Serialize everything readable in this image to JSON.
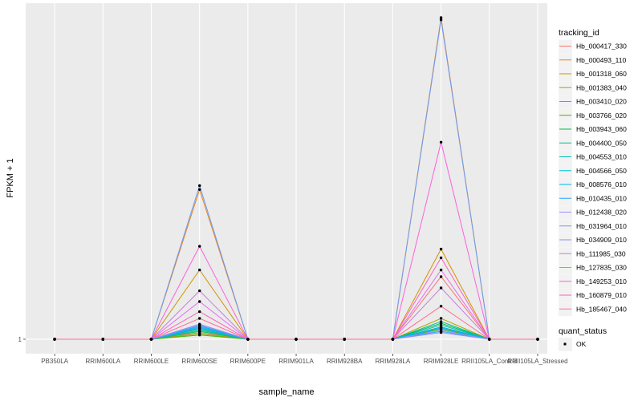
{
  "chart_data": {
    "type": "line",
    "xlabel": "sample_name",
    "ylabel": "FPKM + 1",
    "y_scale": "log",
    "y_ticks": [
      {
        "value": 1,
        "label": "1"
      }
    ],
    "grid": true,
    "categories": [
      "PB350LA",
      "RRIM600LA",
      "RRIM600LE",
      "RRIM600SE",
      "RRIM600PE",
      "RRIM901LA",
      "RRIM928BA",
      "RRIM928LA",
      "RRIM928LE",
      "RRII105LA_Control",
      "RRII105LA_Stressed"
    ],
    "legend": {
      "placement": "right",
      "title": "tracking_id"
    },
    "series": [
      {
        "name": "Hb_000417_330",
        "color": "#F8766D",
        "values": [
          1,
          1,
          1,
          1.25,
          1,
          1,
          1,
          1,
          8,
          1,
          1
        ]
      },
      {
        "name": "Hb_000493_110",
        "color": "#E7851E",
        "values": [
          1,
          1,
          1,
          145,
          1,
          1,
          1,
          1,
          44000,
          1,
          1
        ]
      },
      {
        "name": "Hb_001318_060",
        "color": "#D09400",
        "values": [
          1,
          1,
          1,
          10,
          1,
          1,
          1,
          1,
          20,
          1,
          1
        ]
      },
      {
        "name": "Hb_001383_040",
        "color": "#B2A100",
        "values": [
          1,
          1,
          1,
          1.45,
          1,
          1,
          1,
          1,
          2,
          1,
          1
        ]
      },
      {
        "name": "Hb_003410_020",
        "color": "#89AC00",
        "values": [
          1,
          1,
          1,
          1.2,
          1,
          1,
          1,
          1,
          1.5,
          1,
          1
        ]
      },
      {
        "name": "Hb_003766_020",
        "color": "#45B500",
        "values": [
          1,
          1,
          1,
          1.15,
          1,
          1,
          1,
          1,
          1.4,
          1,
          1
        ]
      },
      {
        "name": "Hb_003943_060",
        "color": "#00BC51",
        "values": [
          1,
          1,
          1,
          1.3,
          1,
          1,
          1,
          1,
          1.7,
          1,
          1
        ]
      },
      {
        "name": "Hb_004400_050",
        "color": "#00C087",
        "values": [
          1,
          1,
          1,
          1.4,
          1,
          1,
          1,
          1,
          1.8,
          1,
          1
        ]
      },
      {
        "name": "Hb_004553_010",
        "color": "#00C0B2",
        "values": [
          1,
          1,
          1,
          1.35,
          1,
          1,
          1,
          1,
          1.6,
          1,
          1
        ]
      },
      {
        "name": "Hb_004566_050",
        "color": "#00BCD6",
        "values": [
          1,
          1,
          1,
          1.5,
          1,
          1,
          1,
          1,
          1.5,
          1,
          1
        ]
      },
      {
        "name": "Hb_008576_010",
        "color": "#00B3F2",
        "values": [
          1,
          1,
          1,
          1.55,
          1,
          1,
          1,
          1,
          1.45,
          1,
          1
        ]
      },
      {
        "name": "Hb_010435_010",
        "color": "#29A3FF",
        "values": [
          1,
          1,
          1,
          1.45,
          1,
          1,
          1,
          1,
          1.3,
          1,
          1
        ]
      },
      {
        "name": "Hb_012438_020",
        "color": "#9C8DFF",
        "values": [
          1,
          1,
          1,
          1.6,
          1,
          1,
          1,
          1,
          1.35,
          1,
          1
        ]
      },
      {
        "name": "Hb_031964_010",
        "color": "#6C9BF5",
        "values": [
          1,
          1,
          1,
          165,
          1,
          1,
          1,
          1,
          41000,
          1,
          1
        ]
      },
      {
        "name": "Hb_034909_010",
        "color": "#8F90F0",
        "values": [
          1,
          1,
          1,
          1.65,
          1,
          1,
          1,
          1,
          1.25,
          1,
          1
        ]
      },
      {
        "name": "Hb_111985_030",
        "color": "#C97CE0",
        "values": [
          1,
          1,
          1,
          5,
          1,
          1,
          1,
          1,
          5.5,
          1,
          1
        ]
      },
      {
        "name": "Hb_127835_030",
        "color": "#E76BF3",
        "values": [
          1,
          1,
          1,
          3.5,
          1,
          1,
          1,
          1,
          10,
          1,
          1
        ]
      },
      {
        "name": "Hb_149253_010",
        "color": "#FA62DB",
        "values": [
          1,
          1,
          1,
          22,
          1,
          1,
          1,
          1,
          700,
          1,
          1
        ]
      },
      {
        "name": "Hb_160879_010",
        "color": "#FF62BC",
        "values": [
          1,
          1,
          1,
          2.5,
          1,
          1,
          1,
          1,
          15,
          1,
          1
        ]
      },
      {
        "name": "Hb_185467_040",
        "color": "#FF6C91",
        "values": [
          1,
          1,
          1,
          2.0,
          1,
          1,
          1,
          1,
          3,
          1,
          1
        ]
      }
    ],
    "shape_legend": {
      "title": "quant_status",
      "items": [
        {
          "label": "OK"
        }
      ]
    }
  }
}
